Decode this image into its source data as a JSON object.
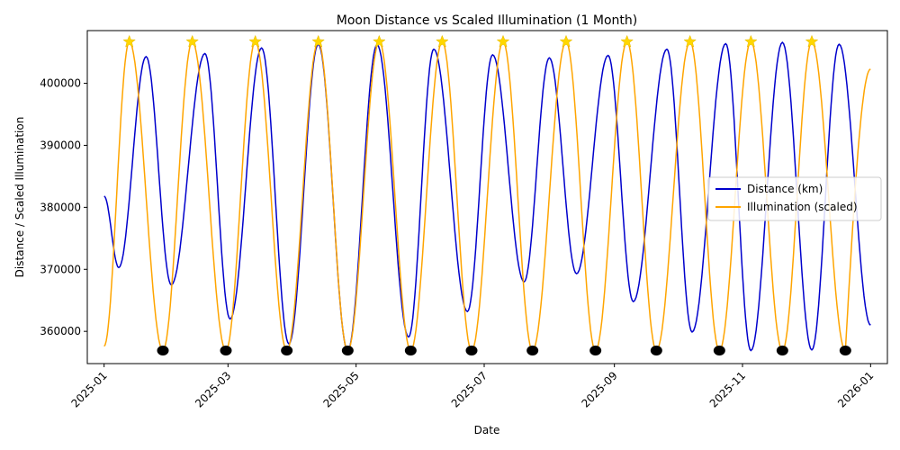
{
  "chart_data": {
    "type": "line",
    "title": "Moon Distance vs Scaled Illumination (1 Month)",
    "xlabel": "Date",
    "ylabel": "Distance / Scaled Illumination",
    "x_range": [
      "2024-12-24",
      "2026-01-09"
    ],
    "ylim": [
      354800,
      408500
    ],
    "x_ticks": [
      "2025-01",
      "2025-03",
      "2025-05",
      "2025-07",
      "2025-09",
      "2025-11",
      "2026-01"
    ],
    "y_ticks": [
      360000,
      370000,
      380000,
      390000,
      400000
    ],
    "y_tick_labels": [
      "360000",
      "370000",
      "380000",
      "390000",
      "400000"
    ],
    "legend": {
      "position": "center-right",
      "entries": [
        {
          "label": "Distance (km)",
          "color": "#0000cc"
        },
        {
          "label": "Illumination (scaled)",
          "color": "#ffa500"
        }
      ]
    },
    "series": [
      {
        "name": "Distance (km)",
        "color": "#0000cc",
        "extrema": [
          {
            "date": "2025-01-01",
            "value": 381800
          },
          {
            "date": "2025-01-08",
            "value": 370300
          },
          {
            "date": "2025-01-21",
            "value": 404300
          },
          {
            "date": "2025-02-02",
            "value": 367500
          },
          {
            "date": "2025-02-18",
            "value": 404800
          },
          {
            "date": "2025-03-02",
            "value": 362000
          },
          {
            "date": "2025-03-17",
            "value": 405700
          },
          {
            "date": "2025-03-30",
            "value": 358000
          },
          {
            "date": "2025-04-13",
            "value": 406300
          },
          {
            "date": "2025-04-27",
            "value": 356900
          },
          {
            "date": "2025-05-11",
            "value": 406200
          },
          {
            "date": "2025-05-26",
            "value": 359100
          },
          {
            "date": "2025-06-07",
            "value": 405500
          },
          {
            "date": "2025-06-23",
            "value": 363200
          },
          {
            "date": "2025-07-05",
            "value": 404600
          },
          {
            "date": "2025-07-20",
            "value": 368000
          },
          {
            "date": "2025-08-01",
            "value": 404100
          },
          {
            "date": "2025-08-14",
            "value": 369300
          },
          {
            "date": "2025-08-29",
            "value": 404500
          },
          {
            "date": "2025-09-10",
            "value": 364800
          },
          {
            "date": "2025-09-26",
            "value": 405500
          },
          {
            "date": "2025-10-08",
            "value": 359900
          },
          {
            "date": "2025-10-24",
            "value": 406400
          },
          {
            "date": "2025-11-05",
            "value": 356900
          },
          {
            "date": "2025-11-20",
            "value": 406600
          },
          {
            "date": "2025-12-04",
            "value": 357000
          },
          {
            "date": "2025-12-17",
            "value": 406300
          },
          {
            "date": "2026-01-01",
            "value": 361000
          }
        ]
      },
      {
        "name": "Illumination (scaled)",
        "color": "#ffa500",
        "min_value": 356900,
        "max_value": 406700,
        "start_value": 357600,
        "end_value": 402300,
        "full_moon_dates": [
          "2025-01-13",
          "2025-02-12",
          "2025-03-14",
          "2025-04-13",
          "2025-05-12",
          "2025-06-11",
          "2025-07-10",
          "2025-08-09",
          "2025-09-07",
          "2025-10-07",
          "2025-11-05",
          "2025-12-04"
        ],
        "new_moon_dates": [
          "2025-01-29",
          "2025-02-28",
          "2025-03-29",
          "2025-04-27",
          "2025-05-27",
          "2025-06-25",
          "2025-07-24",
          "2025-08-23",
          "2025-09-21",
          "2025-10-21",
          "2025-11-20",
          "2025-12-20"
        ]
      }
    ],
    "markers": {
      "full_moon": {
        "shape": "star",
        "color": "#ffd700",
        "value": 406700
      },
      "new_moon": {
        "shape": "circle",
        "color": "#000000",
        "value": 356900
      }
    },
    "grid": false
  }
}
